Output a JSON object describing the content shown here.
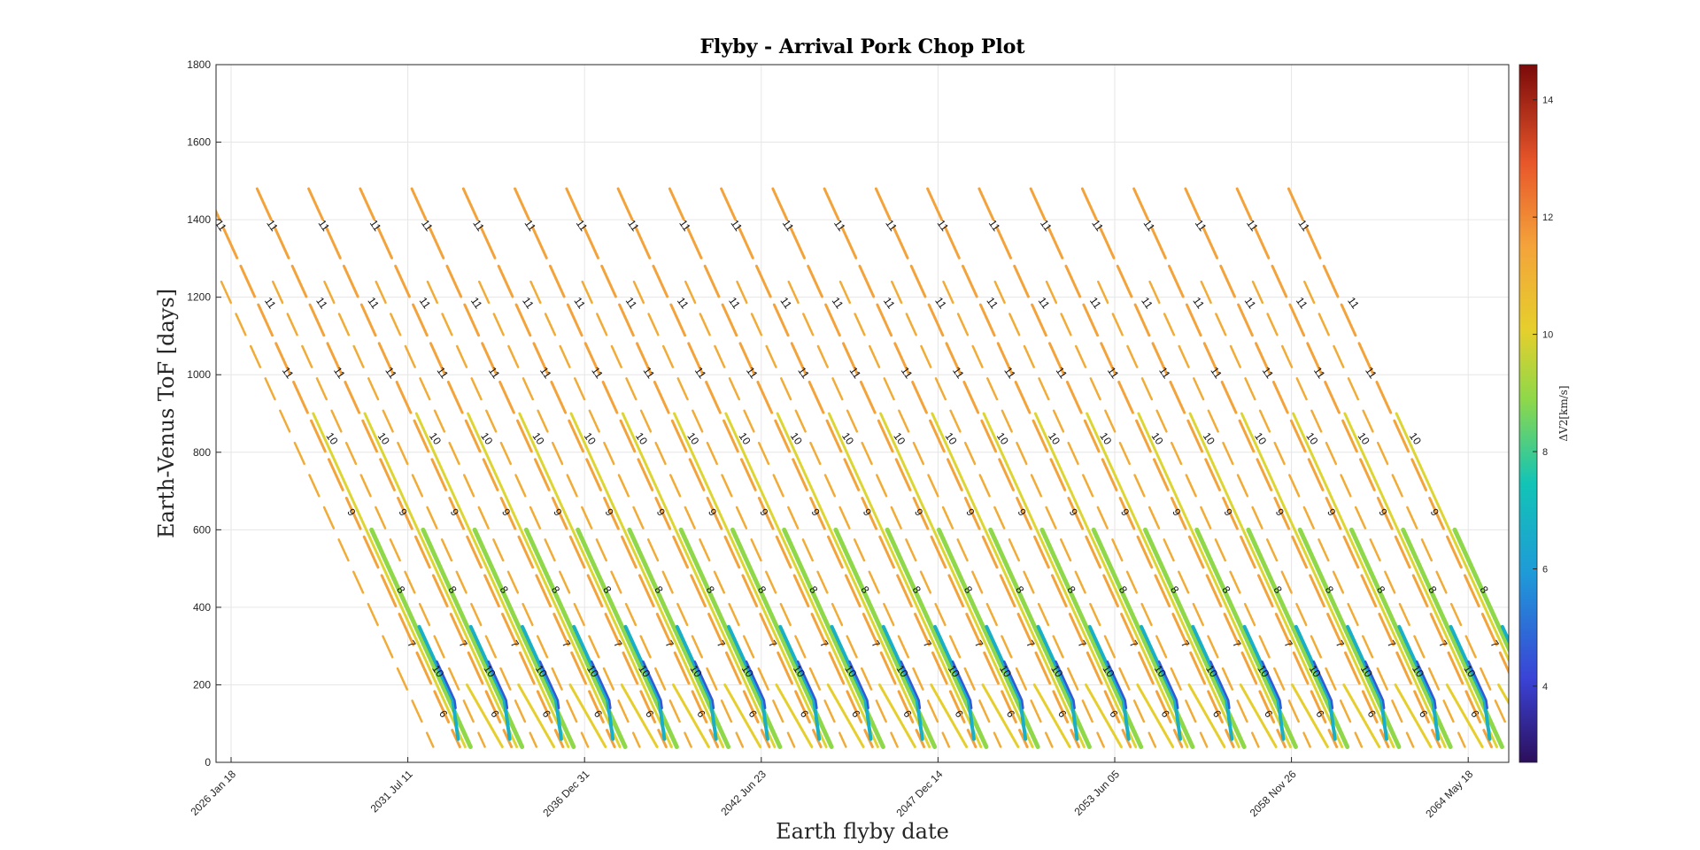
{
  "chart_data": {
    "type": "contour",
    "title": "Flyby - Arrival Pork Chop Plot",
    "xlabel": "Earth flyby date",
    "ylabel": "Earth-Venus ToF [days]",
    "colorbar_label": "ΔV2[km/s]",
    "x_ticks": [
      "2026 Jan 18",
      "2031 Jul 11",
      "2036 Dec 31",
      "2042 Jun 23",
      "2047 Dec 14",
      "2053 Jun 05",
      "2058 Nov 26",
      "2064 May 18"
    ],
    "y_ticks": [
      0,
      200,
      400,
      600,
      800,
      1000,
      1200,
      1400,
      1600,
      1800
    ],
    "ylim": [
      0,
      1800
    ],
    "colorbar_ticks": [
      4,
      6,
      8,
      10,
      12,
      14
    ],
    "colorbar_range": [
      2.7,
      14.6
    ],
    "colormap": "jet",
    "grid": true,
    "contour_levels": [
      6,
      7,
      8,
      9,
      10,
      11
    ],
    "bands": {
      "count": 22,
      "first_start": "2025 Apr",
      "period_days": 584,
      "slope_days_per_day": -0.5
    },
    "sample_labels": [
      {
        "band": 0,
        "tof": 1380,
        "value": 11
      },
      {
        "band": 0,
        "tof": 1180,
        "value": 11
      },
      {
        "band": 0,
        "tof": 1000,
        "value": 11
      },
      {
        "band": 0,
        "tof": 830,
        "value": 10
      },
      {
        "band": 0,
        "tof": 640,
        "value": 9
      },
      {
        "band": 0,
        "tof": 440,
        "value": 8
      },
      {
        "band": 0,
        "tof": 300,
        "value": 7
      },
      {
        "band": 0,
        "tof": 230,
        "value": 10
      },
      {
        "band": 0,
        "tof": 120,
        "value": 6
      }
    ]
  }
}
